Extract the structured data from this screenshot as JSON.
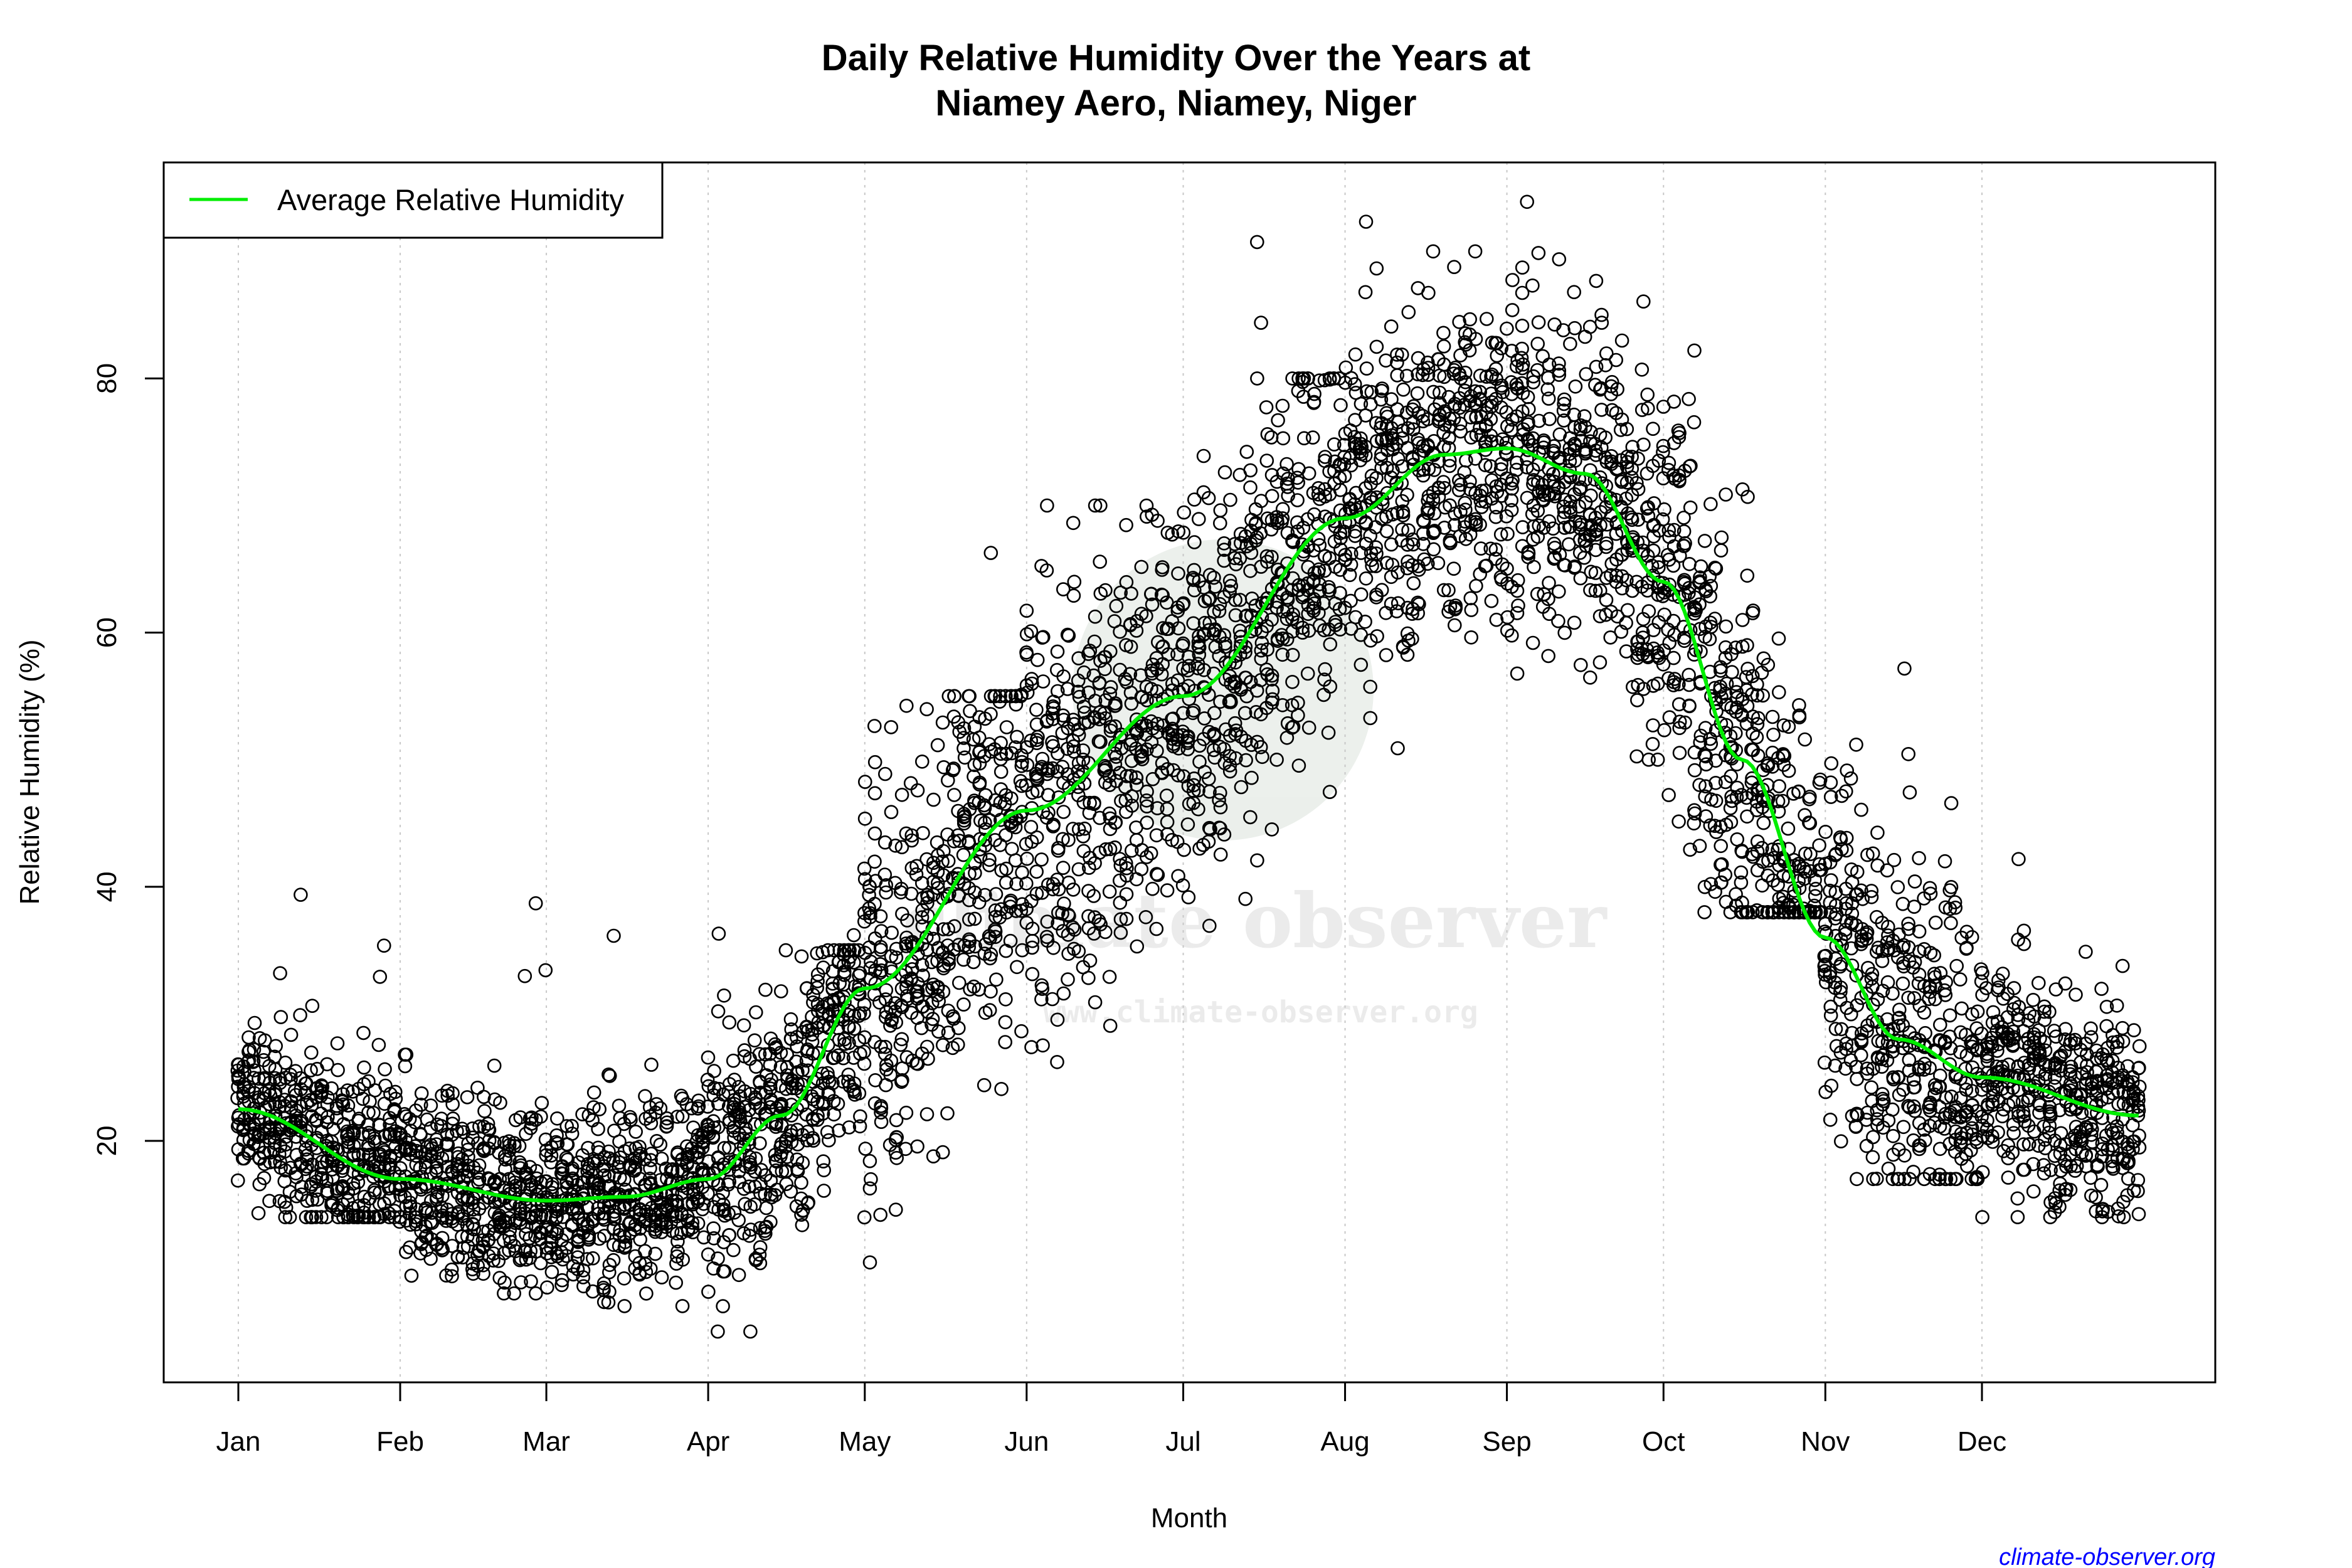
{
  "chart_data": {
    "type": "scatter",
    "title_line1": "Daily Relative Humidity Over the Years at",
    "title_line2": "Niamey Aero, Niamey, Niger",
    "xlabel": "Month",
    "ylabel": "Relative Humidity  (%)",
    "ylim": [
      1,
      97
    ],
    "yticks": [
      20,
      40,
      60,
      80
    ],
    "xticks": [
      {
        "label": "Jan",
        "day": 0
      },
      {
        "label": "Feb",
        "day": 31
      },
      {
        "label": "Mar",
        "day": 59
      },
      {
        "label": "Apr",
        "day": 90
      },
      {
        "label": "May",
        "day": 120
      },
      {
        "label": "Jun",
        "day": 151
      },
      {
        "label": "Jul",
        "day": 181
      },
      {
        "label": "Aug",
        "day": 212
      },
      {
        "label": "Sep",
        "day": 243
      },
      {
        "label": "Oct",
        "day": 273
      },
      {
        "label": "Nov",
        "day": 304
      },
      {
        "label": "Dec",
        "day": 334
      }
    ],
    "grid": "vertical dotted at month ticks",
    "legend": {
      "placement": "top-left",
      "entries": [
        {
          "label": "Average Relative Humidity",
          "color": "#00ee00"
        }
      ]
    },
    "average_curve": {
      "name": "Average Relative Humidity",
      "color": "#00ee00",
      "x_day": [
        0,
        31,
        59,
        74,
        90,
        104,
        120,
        151,
        181,
        212,
        231,
        243,
        258,
        273,
        288,
        304,
        318,
        334,
        364
      ],
      "y": [
        22.5,
        17,
        15.3,
        15.6,
        17,
        22,
        32,
        46,
        55,
        69,
        74,
        74.5,
        72.5,
        64,
        50,
        36,
        28,
        25,
        22
      ]
    },
    "daily_observations": {
      "marker": "open circle",
      "color": "#000000",
      "monthly_range": [
        {
          "month": "Jan",
          "min": 14,
          "max": 35
        },
        {
          "month": "Feb",
          "min": 8,
          "max": 30
        },
        {
          "month": "Mar",
          "min": 7,
          "max": 28
        },
        {
          "month": "Apr",
          "min": 5,
          "max": 35
        },
        {
          "month": "May",
          "min": 6,
          "max": 55
        },
        {
          "month": "Jun",
          "min": 20,
          "max": 70
        },
        {
          "month": "Jul",
          "min": 35,
          "max": 80
        },
        {
          "month": "Aug",
          "min": 50,
          "max": 90
        },
        {
          "month": "Sep",
          "min": 50,
          "max": 90
        },
        {
          "month": "Oct",
          "min": 38,
          "max": 85
        },
        {
          "month": "Nov",
          "min": 17,
          "max": 60
        },
        {
          "month": "Dec",
          "min": 14,
          "max": 40
        }
      ]
    }
  },
  "watermark": {
    "name": "climate observer",
    "url": "www.climate-observer.org"
  },
  "credit": "climate-observer.org",
  "colors": {
    "average": "#00ee00",
    "credit": "#0000ff"
  }
}
